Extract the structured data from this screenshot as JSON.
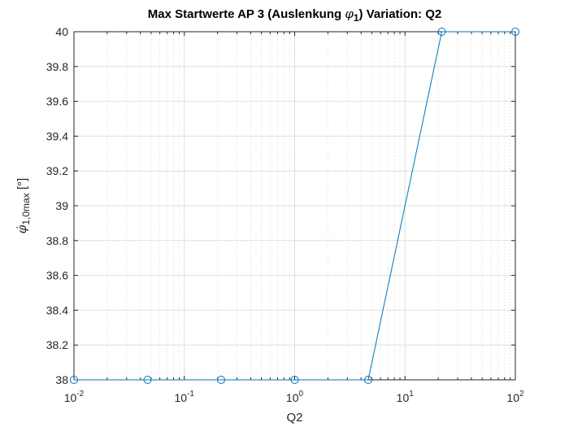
{
  "chart_data": {
    "type": "line",
    "title": "Max Startwerte AP 3 (Auslenkung φ1)  Variation: Q2",
    "title_parts": {
      "before": "Max Startwerte AP 3 (Auslenkung ",
      "symbol": "φ",
      "symbol_sub": "1",
      "after": ")  Variation: Q2"
    },
    "xlabel": "Q2",
    "ylabel_parts": {
      "symbol": "φ̇",
      "sub": "1,0max",
      "unit": " [°]"
    },
    "x_scale": "log",
    "xlim": [
      0.01,
      100
    ],
    "ylim": [
      38,
      40
    ],
    "grid": true,
    "x_ticks": [
      {
        "value": 0.01,
        "base": "10",
        "exp": "-2"
      },
      {
        "value": 0.1,
        "base": "10",
        "exp": "-1"
      },
      {
        "value": 1,
        "base": "10",
        "exp": "0"
      },
      {
        "value": 10,
        "base": "10",
        "exp": "1"
      },
      {
        "value": 100,
        "base": "10",
        "exp": "2"
      }
    ],
    "y_ticks": [
      38,
      38.2,
      38.4,
      38.6,
      38.8,
      39,
      39.2,
      39.4,
      39.6,
      39.8,
      40
    ],
    "y_tick_labels": [
      "38",
      "38.2",
      "38.4",
      "38.6",
      "38.8",
      "39",
      "39.2",
      "39.4",
      "39.6",
      "39.8",
      "40"
    ],
    "line_color": "#0072BD",
    "marker": "circle",
    "series": [
      {
        "x": [
          0.01,
          0.0464,
          0.2154,
          1,
          4.6416,
          21.5443,
          100
        ],
        "y": [
          38,
          38,
          38,
          38,
          38,
          40,
          40
        ]
      }
    ]
  }
}
